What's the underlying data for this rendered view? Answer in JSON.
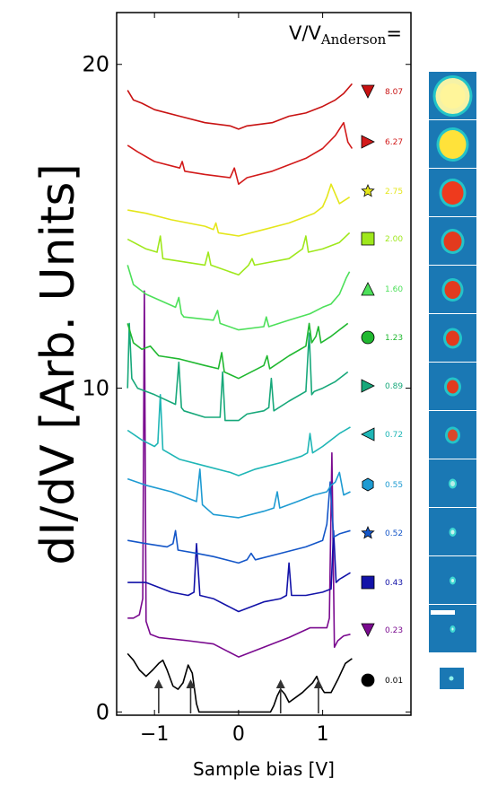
{
  "chart_data": {
    "type": "line",
    "title": "",
    "xlabel": "Sample bias [V]",
    "ylabel": "dI/dV [Arb. Units]",
    "xlim": [
      -1.45,
      2.05
    ],
    "ylim": [
      -0.1,
      21.6
    ],
    "xticks": [
      -1,
      0,
      1
    ],
    "yticks": [
      0,
      10,
      20
    ],
    "legend_title_main": "V/V",
    "legend_title_sub": "Anderson",
    "legend_title_eq": "=",
    "legend_placement": "right",
    "grid": false,
    "series": [
      {
        "name": "0.01",
        "color": "#000000",
        "marker": "circle",
        "x": [
          -1.32,
          -1.25,
          -1.18,
          -1.1,
          -1.02,
          -0.95,
          -0.9,
          -0.85,
          -0.78,
          -0.72,
          -0.66,
          -0.6,
          -0.55,
          -0.5,
          -0.47,
          -0.44,
          -0.3,
          0,
          0.3,
          0.38,
          0.42,
          0.46,
          0.5,
          0.55,
          0.6,
          0.68,
          0.76,
          0.82,
          0.88,
          0.93,
          0.97,
          1.02,
          1.1,
          1.18,
          1.27,
          1.35
        ],
        "y": [
          1.8,
          1.6,
          1.3,
          1.1,
          1.3,
          1.5,
          1.6,
          1.3,
          0.8,
          0.7,
          0.9,
          1.45,
          1.2,
          0.25,
          0,
          0,
          0,
          0,
          0,
          0,
          0.2,
          0.5,
          0.7,
          0.55,
          0.3,
          0.45,
          0.6,
          0.75,
          0.9,
          1.1,
          0.8,
          0.6,
          0.6,
          1.0,
          1.5,
          1.65
        ]
      },
      {
        "name": "0.23",
        "color": "#7a0a8f",
        "marker": "triangle-down",
        "x": [
          -1.32,
          -1.25,
          -1.18,
          -1.14,
          -1.12,
          -1.1,
          -1.05,
          -0.95,
          -0.6,
          -0.3,
          0,
          0.3,
          0.6,
          0.85,
          1.05,
          1.08,
          1.11,
          1.14,
          1.18,
          1.25,
          1.33
        ],
        "y": [
          2.9,
          2.9,
          3.0,
          3.5,
          13.0,
          2.8,
          2.4,
          2.3,
          2.2,
          2.1,
          1.7,
          2.0,
          2.3,
          2.6,
          2.6,
          2.9,
          8.0,
          2.0,
          2.2,
          2.35,
          2.4
        ]
      },
      {
        "name": "0.43",
        "color": "#1212a8",
        "marker": "square",
        "x": [
          -1.32,
          -1.1,
          -0.8,
          -0.6,
          -0.53,
          -0.5,
          -0.46,
          -0.3,
          0,
          0.3,
          0.5,
          0.57,
          0.6,
          0.63,
          0.8,
          1.0,
          1.1,
          1.13,
          1.16,
          1.2,
          1.33
        ],
        "y": [
          4.0,
          4.0,
          3.7,
          3.6,
          3.7,
          5.2,
          3.6,
          3.5,
          3.1,
          3.4,
          3.5,
          3.6,
          4.6,
          3.6,
          3.6,
          3.7,
          3.8,
          5.6,
          4.0,
          4.1,
          4.3
        ]
      },
      {
        "name": "0.52",
        "color": "#1456c8",
        "marker": "star",
        "x": [
          -1.32,
          -1.1,
          -0.85,
          -0.78,
          -0.75,
          -0.72,
          -0.5,
          -0.3,
          0,
          0.1,
          0.15,
          0.2,
          0.5,
          0.8,
          1.0,
          1.05,
          1.09,
          1.13,
          1.2,
          1.33
        ],
        "y": [
          5.3,
          5.2,
          5.1,
          5.2,
          5.6,
          5.0,
          4.9,
          4.8,
          4.6,
          4.7,
          4.9,
          4.7,
          4.9,
          5.1,
          5.3,
          5.8,
          7.1,
          5.4,
          5.5,
          5.6
        ]
      },
      {
        "name": "0.55",
        "color": "#1e9bd2",
        "marker": "hexagon",
        "x": [
          -1.32,
          -1.1,
          -0.8,
          -0.5,
          -0.46,
          -0.43,
          -0.3,
          0,
          0.3,
          0.42,
          0.46,
          0.49,
          0.7,
          0.9,
          1.05,
          1.1,
          1.15,
          1.2,
          1.25,
          1.33
        ],
        "y": [
          7.2,
          7.0,
          6.8,
          6.5,
          7.5,
          6.4,
          6.1,
          6.0,
          6.2,
          6.3,
          6.8,
          6.3,
          6.5,
          6.7,
          6.8,
          7.0,
          7.1,
          7.4,
          6.7,
          6.8
        ]
      },
      {
        "name": "0.72",
        "color": "#1fb6b6",
        "marker": "triangle-left",
        "x": [
          -1.32,
          -1.15,
          -1.0,
          -0.96,
          -0.93,
          -0.9,
          -0.7,
          -0.4,
          -0.1,
          0,
          0.2,
          0.5,
          0.75,
          0.82,
          0.85,
          0.88,
          1.0,
          1.2,
          1.33
        ],
        "y": [
          8.7,
          8.4,
          8.2,
          8.3,
          9.8,
          8.1,
          7.8,
          7.6,
          7.4,
          7.3,
          7.5,
          7.7,
          7.9,
          8.0,
          8.6,
          8.0,
          8.2,
          8.6,
          8.8
        ]
      },
      {
        "name": "0.89",
        "color": "#17a87a",
        "marker": "triangle-right",
        "x": [
          -1.32,
          -1.3,
          -1.27,
          -1.2,
          -1.0,
          -0.75,
          -0.71,
          -0.68,
          -0.65,
          -0.4,
          -0.22,
          -0.19,
          -0.16,
          0,
          0.1,
          0.3,
          0.36,
          0.39,
          0.42,
          0.6,
          0.8,
          0.84,
          0.87,
          0.9,
          1.0,
          1.15,
          1.3
        ],
        "y": [
          10.0,
          12.0,
          10.3,
          10.0,
          9.8,
          9.5,
          10.8,
          9.4,
          9.3,
          9.1,
          9.1,
          10.5,
          9.0,
          9.0,
          9.2,
          9.3,
          9.4,
          10.3,
          9.3,
          9.6,
          9.9,
          11.7,
          9.8,
          9.9,
          10.0,
          10.2,
          10.5
        ]
      },
      {
        "name": "1.23",
        "color": "#20b830",
        "marker": "circle",
        "x": [
          -1.32,
          -1.25,
          -1.15,
          -1.05,
          -0.95,
          -0.7,
          -0.4,
          -0.24,
          -0.2,
          -0.17,
          0,
          0.3,
          0.34,
          0.37,
          0.6,
          0.8,
          0.84,
          0.87,
          0.92,
          0.95,
          0.98,
          1.1,
          1.3
        ],
        "y": [
          12.0,
          11.4,
          11.2,
          11.3,
          11.0,
          10.9,
          10.7,
          10.6,
          11.1,
          10.5,
          10.3,
          10.7,
          11.0,
          10.6,
          11.0,
          11.3,
          12.0,
          11.4,
          11.6,
          11.9,
          11.4,
          11.6,
          12.0
        ]
      },
      {
        "name": "1.60",
        "color": "#4de05a",
        "marker": "triangle-up",
        "x": [
          -1.32,
          -1.25,
          -1.1,
          -0.75,
          -0.71,
          -0.68,
          -0.65,
          -0.3,
          -0.25,
          -0.22,
          0,
          0.3,
          0.33,
          0.36,
          0.6,
          0.85,
          1.0,
          1.1,
          1.2,
          1.28,
          1.32
        ],
        "y": [
          13.8,
          13.2,
          12.9,
          12.5,
          12.8,
          12.3,
          12.2,
          12.1,
          12.4,
          12.0,
          11.8,
          11.9,
          12.2,
          11.9,
          12.1,
          12.3,
          12.5,
          12.6,
          12.9,
          13.4,
          13.6
        ]
      },
      {
        "name": "2.00",
        "color": "#9fe81c",
        "marker": "square",
        "x": [
          -1.32,
          -1.1,
          -0.97,
          -0.93,
          -0.9,
          -0.4,
          -0.36,
          -0.33,
          0,
          0.12,
          0.16,
          0.19,
          0.6,
          0.76,
          0.8,
          0.83,
          1.0,
          1.2,
          1.32
        ],
        "y": [
          14.6,
          14.3,
          14.2,
          14.7,
          14.0,
          13.8,
          14.2,
          13.8,
          13.5,
          13.8,
          14.0,
          13.8,
          14.0,
          14.3,
          14.7,
          14.2,
          14.3,
          14.5,
          14.8
        ]
      },
      {
        "name": "2.75",
        "color": "#e4e61a",
        "marker": "star",
        "x": [
          -1.32,
          -1.1,
          -0.8,
          -0.4,
          -0.3,
          -0.27,
          -0.24,
          0,
          0.3,
          0.6,
          0.9,
          1.0,
          1.05,
          1.1,
          1.2,
          1.32
        ],
        "y": [
          15.5,
          15.4,
          15.2,
          15.0,
          14.9,
          15.1,
          14.8,
          14.7,
          14.9,
          15.1,
          15.4,
          15.6,
          15.9,
          16.3,
          15.7,
          15.9
        ]
      },
      {
        "name": "6.27",
        "color": "#d21a1a",
        "marker": "triangle-right",
        "x": [
          -1.32,
          -1.2,
          -1.0,
          -0.7,
          -0.67,
          -0.64,
          -0.4,
          -0.1,
          -0.05,
          0,
          0.1,
          0.4,
          0.8,
          1.0,
          1.15,
          1.25,
          1.3,
          1.35
        ],
        "y": [
          17.5,
          17.3,
          17.0,
          16.8,
          17.0,
          16.7,
          16.6,
          16.5,
          16.8,
          16.3,
          16.5,
          16.7,
          17.1,
          17.4,
          17.8,
          18.2,
          17.6,
          17.4
        ]
      },
      {
        "name": "8.07",
        "color": "#c81212",
        "marker": "triangle-down",
        "x": [
          -1.32,
          -1.25,
          -1.15,
          -1.0,
          -0.7,
          -0.4,
          -0.1,
          0,
          0.1,
          0.4,
          0.6,
          0.8,
          1.0,
          1.15,
          1.25,
          1.35
        ],
        "y": [
          19.2,
          18.9,
          18.8,
          18.6,
          18.4,
          18.2,
          18.1,
          18.0,
          18.1,
          18.2,
          18.4,
          18.5,
          18.7,
          18.9,
          19.1,
          19.4
        ]
      }
    ],
    "arrows_x": [
      -0.95,
      -0.57,
      0.5,
      0.95
    ],
    "inset_images": 13,
    "colors": {
      "axis": "#000000",
      "arrow": "#333333",
      "tile_bg": "#1a78b4",
      "tile_sep": "#ffffff"
    }
  }
}
